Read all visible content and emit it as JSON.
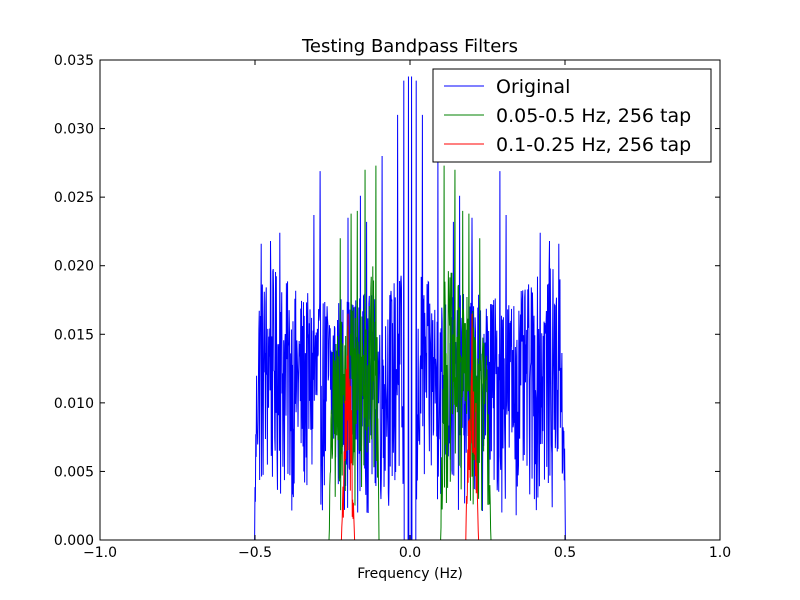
{
  "chart_data": {
    "type": "line",
    "title": "Testing Bandpass Filters",
    "xlabel": "Frequency (Hz)",
    "ylabel": "",
    "xlim": [
      -1.0,
      1.0
    ],
    "ylim": [
      0.0,
      0.035
    ],
    "x_ticks": [
      -1.0,
      -0.5,
      0.0,
      0.5,
      1.0
    ],
    "x_tick_labels": [
      "−1.0",
      "−0.5",
      "0.0",
      "0.5",
      "1.0"
    ],
    "y_ticks": [
      0.0,
      0.005,
      0.01,
      0.015,
      0.02,
      0.025,
      0.03,
      0.035
    ],
    "y_tick_labels": [
      "0.000",
      "0.005",
      "0.010",
      "0.015",
      "0.020",
      "0.025",
      "0.030",
      "0.035"
    ],
    "grid": false,
    "legend_position": "top-right",
    "series": [
      {
        "name": "Original",
        "color": "#0000ff",
        "band": [
          0.02,
          0.5
        ],
        "envelope": {
          "x": [
            0.02,
            0.05,
            0.1,
            0.15,
            0.2,
            0.25,
            0.3,
            0.35,
            0.4,
            0.45,
            0.5
          ],
          "y": [
            0.02,
            0.019,
            0.018,
            0.018,
            0.018,
            0.018,
            0.018,
            0.018,
            0.019,
            0.02,
            0.019
          ]
        },
        "peaks": [
          {
            "x": 0.005,
            "y": 0.0338
          },
          {
            "x": 0.02,
            "y": 0.0335
          },
          {
            "x": 0.04,
            "y": 0.031
          },
          {
            "x": 0.09,
            "y": 0.028
          },
          {
            "x": 0.14,
            "y": 0.0232
          },
          {
            "x": 0.16,
            "y": 0.0251
          },
          {
            "x": 0.2,
            "y": 0.0235
          },
          {
            "x": 0.29,
            "y": 0.0269
          },
          {
            "x": 0.31,
            "y": 0.0237
          },
          {
            "x": 0.42,
            "y": 0.0224
          },
          {
            "x": 0.45,
            "y": 0.0218
          },
          {
            "x": 0.48,
            "y": 0.0216
          }
        ]
      },
      {
        "name": "0.05-0.5 Hz, 256 tap",
        "color": "#008000",
        "band": [
          0.1,
          0.26
        ],
        "envelope": {
          "x": [
            0.1,
            0.12,
            0.15,
            0.18,
            0.2,
            0.22,
            0.24,
            0.26
          ],
          "y": [
            0.018,
            0.02,
            0.019,
            0.018,
            0.017,
            0.016,
            0.015,
            0.012
          ]
        },
        "peaks": [
          {
            "x": 0.11,
            "y": 0.0273
          },
          {
            "x": 0.145,
            "y": 0.027
          },
          {
            "x": 0.17,
            "y": 0.024
          },
          {
            "x": 0.19,
            "y": 0.0238
          },
          {
            "x": 0.225,
            "y": 0.022
          }
        ]
      },
      {
        "name": "0.1-0.25 Hz, 256 tap",
        "color": "#ff0000",
        "band": [
          0.18,
          0.22
        ],
        "envelope": {
          "x": [
            0.18,
            0.19,
            0.2,
            0.21,
            0.22
          ],
          "y": [
            0.006,
            0.012,
            0.015,
            0.012,
            0.006
          ]
        },
        "peaks": [
          {
            "x": 0.2,
            "y": 0.0165
          }
        ]
      }
    ]
  }
}
